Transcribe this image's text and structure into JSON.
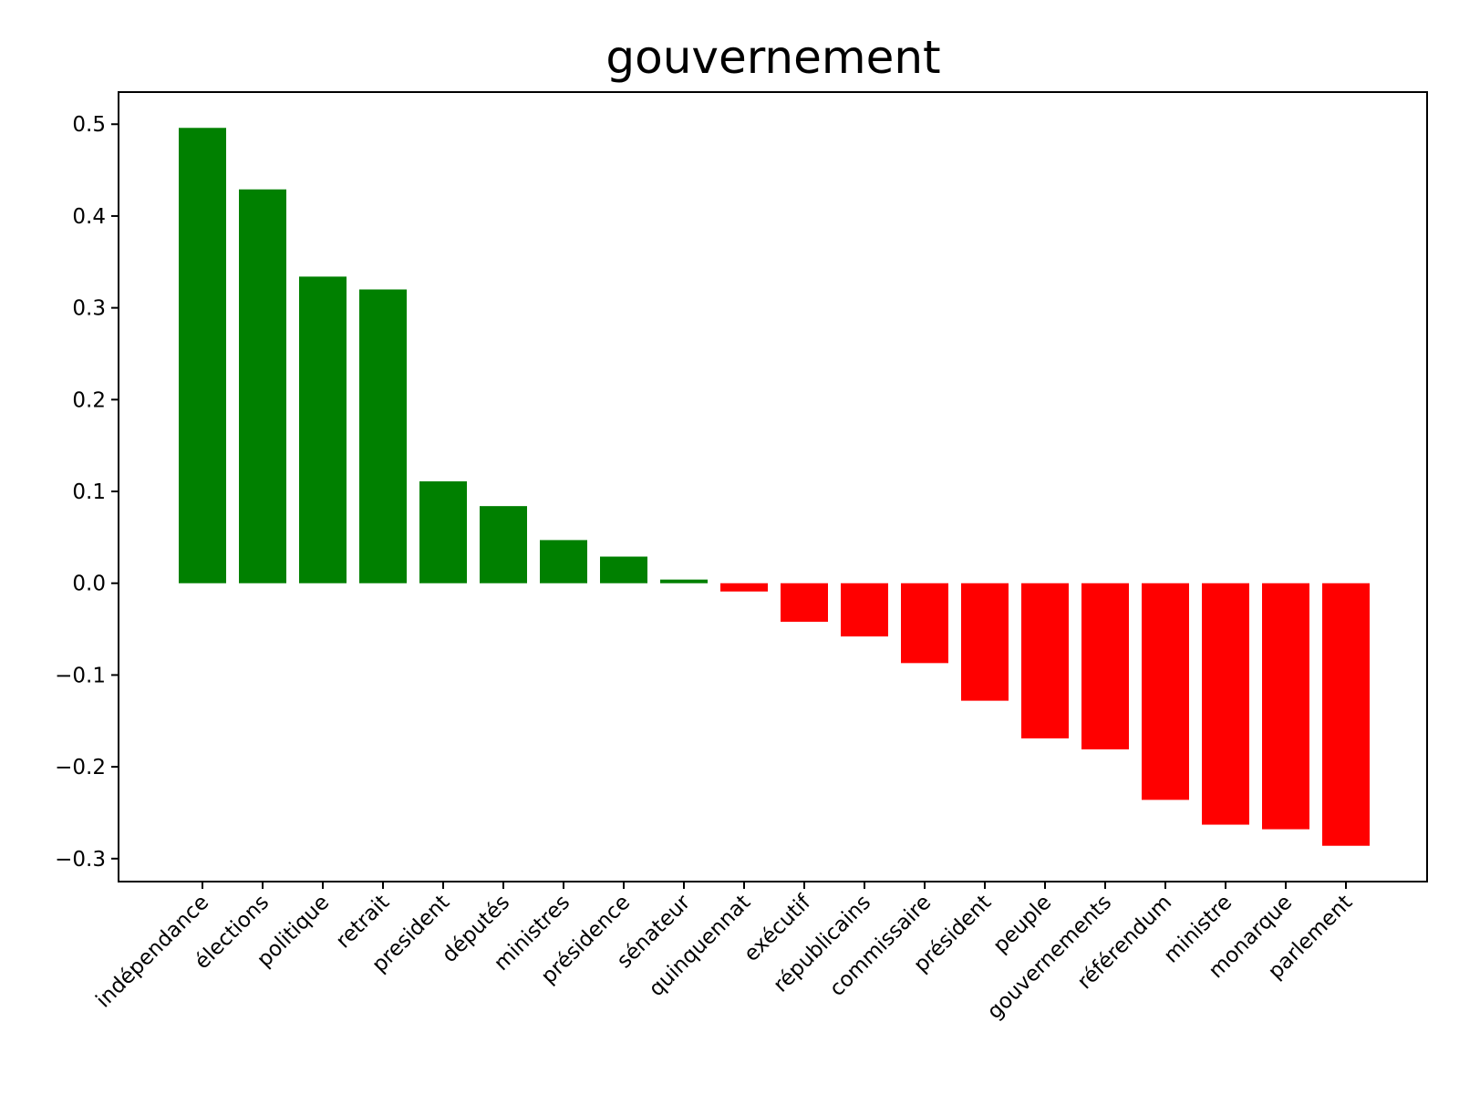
{
  "chart_data": {
    "type": "bar",
    "title": "gouvernement",
    "xlabel": "",
    "ylabel": "",
    "ylim": [
      -0.325,
      0.535
    ],
    "yticks": [
      0.5,
      0.4,
      0.3,
      0.2,
      0.1,
      0.0,
      -0.1,
      -0.2,
      -0.3
    ],
    "ytick_labels": [
      "0.5",
      "0.4",
      "0.3",
      "0.2",
      "0.1",
      "0.0",
      "−0.1",
      "−0.2",
      "−0.3"
    ],
    "categories": [
      "indépendance",
      "élections",
      "politique",
      "retrait",
      "president",
      "députés",
      "ministres",
      "présidence",
      "sénateur",
      "quinquennat",
      "exécutif",
      "républicains",
      "commissaire",
      "président",
      "peuple",
      "gouvernements",
      "référendum",
      "ministre",
      "monarque",
      "parlement"
    ],
    "values": [
      0.496,
      0.429,
      0.334,
      0.32,
      0.111,
      0.084,
      0.047,
      0.029,
      0.004,
      -0.009,
      -0.042,
      -0.058,
      -0.087,
      -0.128,
      -0.169,
      -0.181,
      -0.236,
      -0.263,
      -0.268,
      -0.286
    ],
    "positive_color": "#008000",
    "negative_color": "#ff0000",
    "grid": false,
    "legend": "none"
  }
}
